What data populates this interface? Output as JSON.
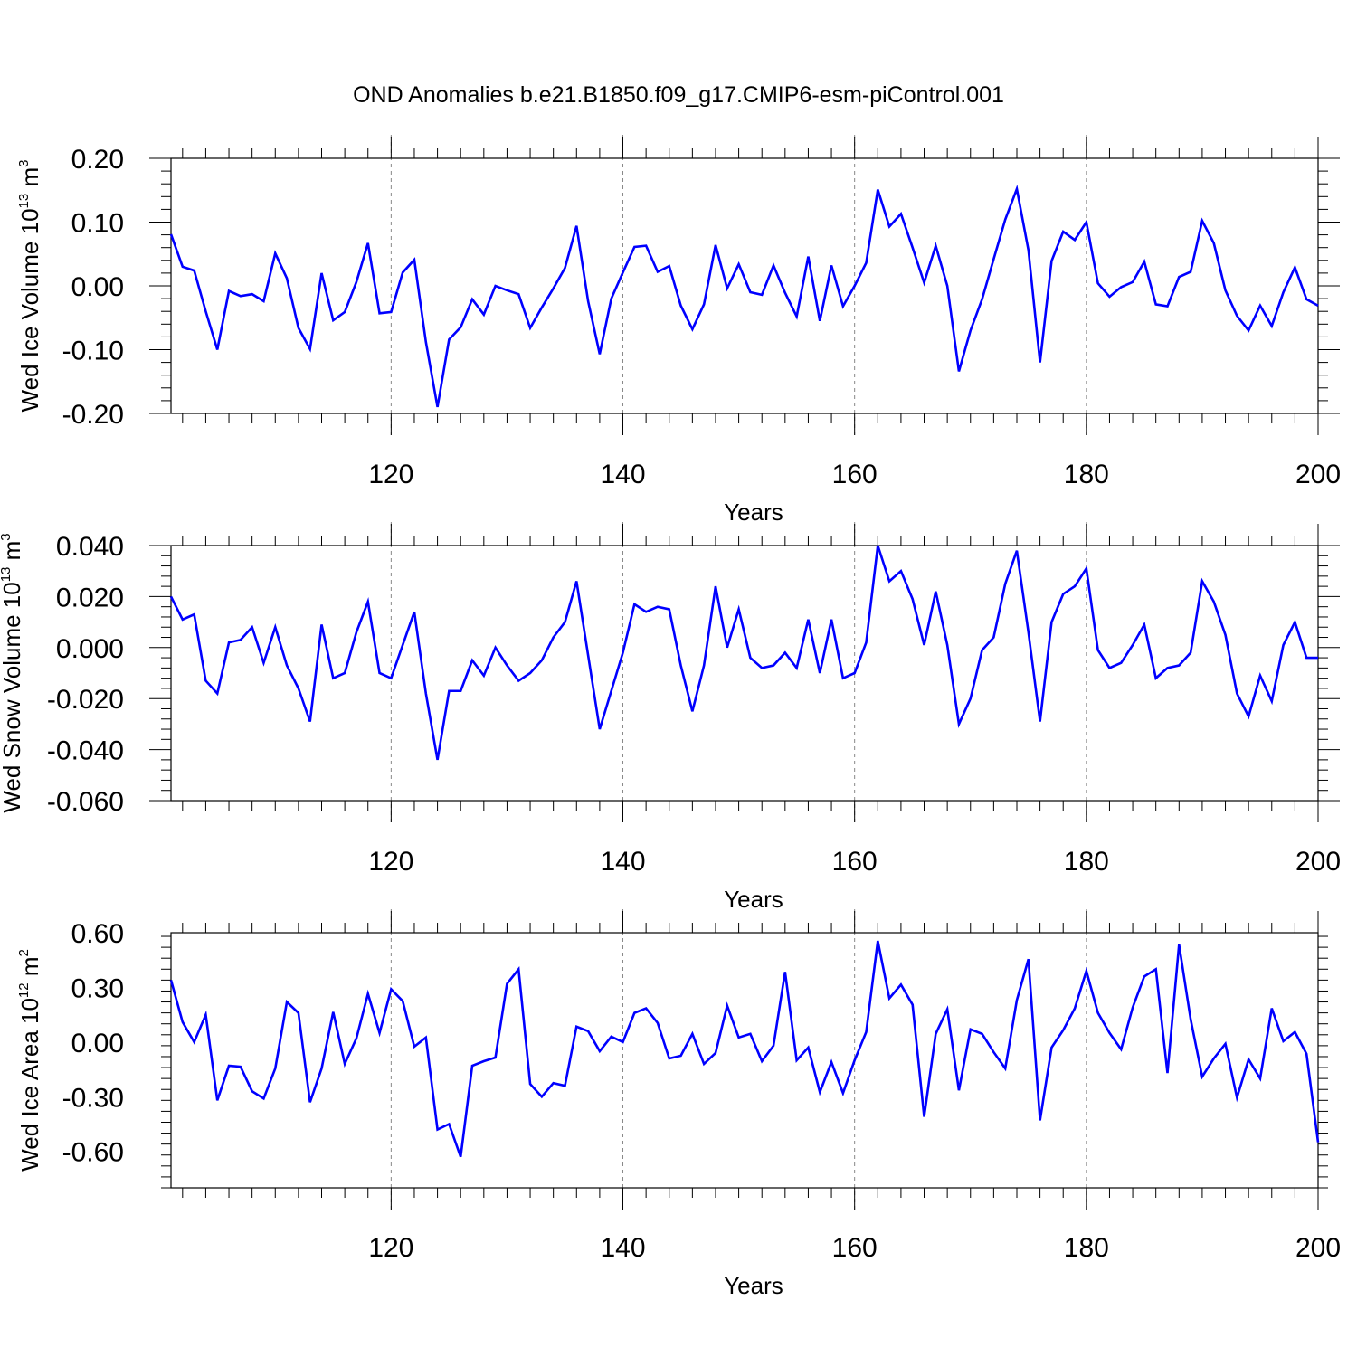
{
  "title": "OND Anomalies b.e21.B1850.f09_g17.CMIP6-esm-piControl.001",
  "colors": {
    "line": "#0000ff",
    "axis": "#000000",
    "grid": "#888888"
  },
  "chart_data": [
    {
      "type": "line",
      "ylabel": {
        "main": "Wed Ice Volume 10",
        "sup": "13",
        "unit": " m",
        "unit_sup": "3"
      },
      "xlabel": "Years",
      "xlim": [
        101,
        200
      ],
      "ylim": [
        -0.2,
        0.2
      ],
      "yticks": [
        -0.2,
        -0.1,
        0.0,
        0.1,
        0.2
      ],
      "ytick_labels": [
        "-0.20",
        "-0.10",
        "0.00",
        "0.10",
        "0.20"
      ],
      "xticks": [
        120,
        140,
        160,
        180,
        200
      ],
      "xtick_labels": [
        "120",
        "140",
        "160",
        "180",
        "200"
      ],
      "series": [
        {
          "name": "Wed Ice Volume",
          "x_start": 101,
          "values": [
            0.081,
            0.03,
            0.024,
            -0.04,
            -0.1,
            -0.008,
            -0.016,
            -0.013,
            -0.024,
            0.051,
            0.012,
            -0.066,
            -0.099,
            0.02,
            -0.054,
            -0.041,
            0.006,
            0.067,
            -0.043,
            -0.041,
            0.021,
            0.041,
            -0.088,
            -0.19,
            -0.084,
            -0.065,
            -0.021,
            -0.045,
            0.0,
            -0.007,
            -0.013,
            -0.066,
            -0.034,
            -0.004,
            0.028,
            0.094,
            -0.024,
            -0.107,
            -0.02,
            0.021,
            0.061,
            0.063,
            0.022,
            0.031,
            -0.031,
            -0.068,
            -0.029,
            0.064,
            -0.004,
            0.034,
            -0.01,
            -0.014,
            0.032,
            -0.011,
            -0.048,
            0.046,
            -0.055,
            0.032,
            -0.032,
            -0.0,
            0.036,
            0.151,
            0.093,
            0.113,
            0.06,
            0.005,
            0.063,
            0.0,
            -0.134,
            -0.07,
            -0.021,
            0.042,
            0.104,
            0.152,
            0.056,
            -0.12,
            0.039,
            0.085,
            0.072,
            0.1,
            0.004,
            -0.017,
            -0.002,
            0.006,
            0.038,
            -0.029,
            -0.032,
            0.014,
            0.022,
            0.102,
            0.067,
            -0.007,
            -0.047,
            -0.07,
            -0.031,
            -0.063,
            -0.01,
            0.029,
            -0.021,
            -0.031
          ]
        }
      ]
    },
    {
      "type": "line",
      "ylabel": {
        "main": "Wed Snow Volume 10",
        "sup": "13",
        "unit": " m",
        "unit_sup": "3"
      },
      "xlabel": "Years",
      "xlim": [
        101,
        200
      ],
      "ylim": [
        -0.06,
        0.04
      ],
      "yticks": [
        -0.06,
        -0.04,
        -0.02,
        0.0,
        0.02,
        0.04
      ],
      "ytick_labels": [
        "-0.060",
        "-0.040",
        "-0.020",
        "0.000",
        "0.020",
        "0.040"
      ],
      "xticks": [
        120,
        140,
        160,
        180,
        200
      ],
      "xtick_labels": [
        "120",
        "140",
        "160",
        "180",
        "200"
      ],
      "series": [
        {
          "name": "Wed Snow Volume",
          "x_start": 101,
          "values": [
            0.02,
            0.011,
            0.013,
            -0.013,
            -0.018,
            0.002,
            0.003,
            0.008,
            -0.006,
            0.008,
            -0.007,
            -0.016,
            -0.029,
            0.009,
            -0.012,
            -0.01,
            0.006,
            0.018,
            -0.01,
            -0.012,
            0.001,
            0.014,
            -0.018,
            -0.044,
            -0.017,
            -0.017,
            -0.005,
            -0.011,
            -0.0,
            -0.007,
            -0.013,
            -0.01,
            -0.005,
            0.004,
            0.01,
            0.026,
            -0.003,
            -0.032,
            -0.017,
            -0.002,
            0.017,
            0.014,
            0.016,
            0.015,
            -0.007,
            -0.025,
            -0.007,
            0.024,
            -0.0,
            0.015,
            -0.004,
            -0.008,
            -0.007,
            -0.002,
            -0.008,
            0.011,
            -0.01,
            0.011,
            -0.012,
            -0.01,
            0.002,
            0.04,
            0.026,
            0.03,
            0.019,
            0.001,
            0.022,
            0.001,
            -0.03,
            -0.02,
            -0.001,
            0.004,
            0.025,
            0.038,
            0.006,
            -0.029,
            0.01,
            0.021,
            0.024,
            0.031,
            -0.001,
            -0.008,
            -0.006,
            0.001,
            0.009,
            -0.012,
            -0.008,
            -0.007,
            -0.002,
            0.026,
            0.018,
            0.005,
            -0.018,
            -0.027,
            -0.011,
            -0.021,
            0.001,
            0.01,
            -0.004,
            -0.004
          ]
        }
      ]
    },
    {
      "type": "line",
      "ylabel": {
        "main": "Wed Ice Area 10",
        "sup": "12",
        "unit": " m",
        "unit_sup": "2"
      },
      "xlabel": "Years",
      "xlim": [
        101,
        200
      ],
      "ylim": [
        -0.8,
        0.6
      ],
      "yticks": [
        -0.6,
        -0.3,
        0.0,
        0.3,
        0.6
      ],
      "ytick_labels": [
        "-0.60",
        "-0.30",
        "0.00",
        "0.30",
        "0.60"
      ],
      "xticks": [
        120,
        140,
        160,
        180,
        200
      ],
      "xtick_labels": [
        "120",
        "140",
        "160",
        "180",
        "200"
      ],
      "series": [
        {
          "name": "Wed Ice Area",
          "x_start": 101,
          "values": [
            0.34,
            0.11,
            0.0,
            0.15,
            -0.32,
            -0.13,
            -0.135,
            -0.27,
            -0.31,
            -0.145,
            0.22,
            0.16,
            -0.33,
            -0.145,
            0.165,
            -0.12,
            0.02,
            0.265,
            0.05,
            0.29,
            0.225,
            -0.025,
            0.025,
            -0.48,
            -0.45,
            -0.63,
            -0.13,
            -0.105,
            -0.085,
            0.32,
            0.4,
            -0.23,
            -0.3,
            -0.225,
            -0.24,
            0.085,
            0.06,
            -0.05,
            0.03,
            0.0,
            0.16,
            0.185,
            0.105,
            -0.09,
            -0.075,
            0.045,
            -0.12,
            -0.06,
            0.2,
            0.025,
            0.045,
            -0.105,
            -0.02,
            0.385,
            -0.1,
            -0.03,
            -0.275,
            -0.11,
            -0.28,
            -0.1,
            0.055,
            0.555,
            0.24,
            0.315,
            0.205,
            -0.41,
            0.045,
            0.18,
            -0.265,
            0.07,
            0.045,
            -0.055,
            -0.145,
            0.23,
            0.455,
            -0.43,
            -0.03,
            0.065,
            0.185,
            0.39,
            0.16,
            0.05,
            -0.04,
            0.19,
            0.36,
            0.4,
            -0.17,
            0.535,
            0.125,
            -0.19,
            -0.09,
            -0.01,
            -0.305,
            -0.095,
            -0.2,
            0.185,
            0.005,
            0.055,
            -0.065,
            -0.55
          ]
        }
      ]
    }
  ]
}
